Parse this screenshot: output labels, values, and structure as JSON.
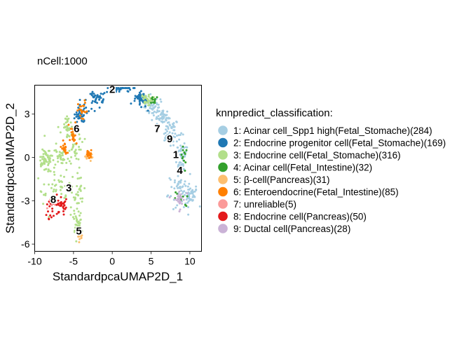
{
  "chart_data": {
    "type": "scatter",
    "title": "nCell:1000",
    "xlabel": "StandardpcaUMAP2D_1",
    "ylabel": "StandardpcaUMAP2D_2",
    "xlim": [
      -10,
      11.5
    ],
    "ylim": [
      -6.5,
      5.0
    ],
    "x_ticks": [
      -10,
      -5,
      0,
      5,
      10
    ],
    "y_ticks": [
      -6,
      -3,
      0,
      3
    ],
    "x_tick_labels": [
      "-10",
      "-5",
      "0",
      "5",
      "10"
    ],
    "y_tick_labels": [
      "-6",
      "-3",
      "0",
      "3"
    ],
    "grid": false,
    "legend_title": "knnpredict_classification:",
    "legend_position": "right",
    "series": [
      {
        "name": "1: Acinar cell_Spp1 high(Fetal_Stomache)(284)",
        "color": "#A6CEE3",
        "count": 284,
        "regions": [
          [
            5.3,
            3.5,
            1.2,
            0.7
          ],
          [
            7.5,
            1.8,
            1.0,
            0.9
          ],
          [
            8.8,
            0.2,
            0.8,
            1.2
          ],
          [
            8.6,
            -2.2,
            1.4,
            1.2
          ],
          [
            10.2,
            -2.6,
            0.8,
            0.8
          ],
          [
            6.5,
            2.8,
            0.8,
            0.5
          ]
        ]
      },
      {
        "name": "2: Endocrine progenitor cell(Fetal_Stomache)(169)",
        "color": "#1F78B4",
        "count": 169,
        "regions": [
          [
            1.0,
            4.8,
            2.3,
            0.45
          ],
          [
            -2.0,
            4.0,
            1.4,
            0.6
          ],
          [
            3.6,
            4.0,
            0.9,
            0.6
          ],
          [
            -4.0,
            3.0,
            0.8,
            0.6
          ]
        ]
      },
      {
        "name": "3: Endocrine cell(Fetal_Stomache)(316)",
        "color": "#B2DF8A",
        "count": 316,
        "regions": [
          [
            -4.5,
            -2.5,
            0.9,
            2.0
          ],
          [
            -6.5,
            -2.3,
            2.0,
            1.2
          ],
          [
            -8.2,
            -1.2,
            1.2,
            2.4
          ],
          [
            -6.5,
            0.1,
            1.2,
            0.7
          ],
          [
            -4.8,
            0.8,
            0.8,
            1.2
          ],
          [
            -5.8,
            2.0,
            0.8,
            0.9
          ],
          [
            -4.5,
            -4.6,
            0.5,
            0.6
          ],
          [
            4.5,
            4.0,
            0.8,
            0.4
          ],
          [
            -8.7,
            0.0,
            0.6,
            0.6
          ]
        ]
      },
      {
        "name": "4: Acinar cell(Fetal_Intestine)(32)",
        "color": "#33A02C",
        "count": 32,
        "regions": [
          [
            9.0,
            0.0,
            0.5,
            1.0
          ],
          [
            9.0,
            -2.9,
            1.0,
            0.5
          ],
          [
            5.3,
            4.0,
            0.5,
            0.3
          ]
        ]
      },
      {
        "name": "5: β-cell(Pancreas)(31)",
        "color": "#FDBF6F",
        "count": 31,
        "regions": [
          [
            -4.2,
            -5.2,
            0.3,
            0.6
          ],
          [
            -3.0,
            0.0,
            0.5,
            0.3
          ]
        ]
      },
      {
        "name": "6: Enteroendocrine(Fetal_Intestine)(85)",
        "color": "#FF7F00",
        "count": 85,
        "regions": [
          [
            -5.0,
            1.6,
            0.6,
            0.9
          ],
          [
            -3.8,
            3.2,
            0.6,
            0.7
          ],
          [
            -3.0,
            0.2,
            0.4,
            0.3
          ],
          [
            -6.2,
            0.6,
            0.4,
            0.6
          ]
        ]
      },
      {
        "name": "7: unreliable(5)",
        "color": "#FB9A99",
        "count": 5,
        "regions": [
          [
            -7.5,
            -3.2,
            0.8,
            0.5
          ]
        ]
      },
      {
        "name": "8: Endocrine cell(Pancreas)(50)",
        "color": "#E31A1C",
        "count": 50,
        "regions": [
          [
            -7.9,
            -3.4,
            0.9,
            0.8
          ],
          [
            -6.4,
            -3.3,
            0.6,
            0.5
          ]
        ]
      },
      {
        "name": "9: Ductal cell(Pancreas)(28)",
        "color": "#CAB2D6",
        "count": 28,
        "regions": [
          [
            8.6,
            -2.9,
            0.8,
            0.7
          ]
        ]
      }
    ],
    "cluster_labels": [
      {
        "text": "1",
        "x": 8.2,
        "y": 0.2
      },
      {
        "text": "2",
        "x": 0.0,
        "y": 4.7
      },
      {
        "text": "3",
        "x": -5.6,
        "y": -2.1
      },
      {
        "text": "4",
        "x": 8.7,
        "y": -0.9
      },
      {
        "text": "5",
        "x": -4.3,
        "y": -5.1
      },
      {
        "text": "6",
        "x": -4.6,
        "y": 2.0
      },
      {
        "text": "7",
        "x": 5.8,
        "y": 2.0
      },
      {
        "text": "8",
        "x": -7.6,
        "y": -2.9
      },
      {
        "text": "9",
        "x": 7.4,
        "y": 1.3
      }
    ]
  }
}
